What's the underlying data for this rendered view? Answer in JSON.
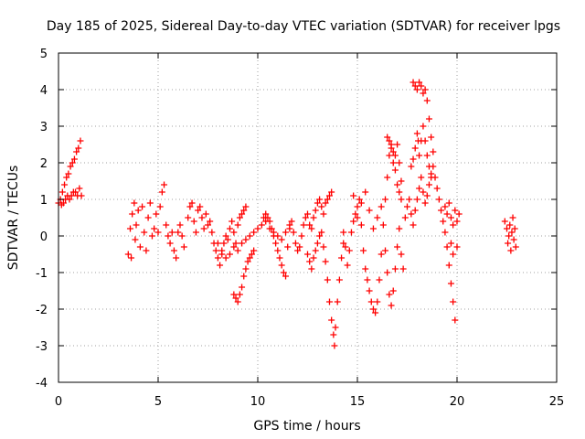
{
  "chart_data": {
    "type": "scatter",
    "title": "Day 185 of 2025, Sidereal Day-to-day VTEC variation (SDTVAR) for receiver lpgs",
    "xlabel": "GPS time / hours",
    "ylabel": "SDTVAR / TECUs",
    "xlim": [
      0,
      25
    ],
    "ylim": [
      -4,
      5
    ],
    "xticks": [
      "0",
      "5",
      "10",
      "15",
      "20",
      "25"
    ],
    "yticks": [
      "-4",
      "-3",
      "-2",
      "-1",
      "0",
      "1",
      "2",
      "3",
      "4",
      "5"
    ],
    "grid": true,
    "marker": "plus",
    "color": "#ff0000",
    "series": [
      {
        "name": "SDTVAR",
        "points": [
          [
            0.0,
            0.9
          ],
          [
            0.1,
            1.0
          ],
          [
            0.15,
            0.85
          ],
          [
            0.2,
            1.2
          ],
          [
            0.25,
            0.9
          ],
          [
            0.3,
            1.4
          ],
          [
            0.35,
            1.0
          ],
          [
            0.4,
            1.6
          ],
          [
            0.45,
            1.1
          ],
          [
            0.5,
            1.7
          ],
          [
            0.55,
            1.0
          ],
          [
            0.6,
            1.9
          ],
          [
            0.65,
            1.1
          ],
          [
            0.7,
            2.0
          ],
          [
            0.75,
            1.2
          ],
          [
            0.8,
            2.1
          ],
          [
            0.85,
            1.2
          ],
          [
            0.9,
            2.3
          ],
          [
            0.95,
            1.1
          ],
          [
            1.0,
            2.4
          ],
          [
            1.05,
            1.3
          ],
          [
            1.1,
            2.6
          ],
          [
            1.15,
            1.1
          ],
          [
            3.5,
            -0.5
          ],
          [
            3.6,
            0.2
          ],
          [
            3.65,
            -0.6
          ],
          [
            3.7,
            0.6
          ],
          [
            3.8,
            0.9
          ],
          [
            3.85,
            -0.1
          ],
          [
            3.9,
            0.3
          ],
          [
            4.0,
            0.7
          ],
          [
            4.1,
            -0.3
          ],
          [
            4.2,
            0.8
          ],
          [
            4.3,
            0.1
          ],
          [
            4.4,
            -0.4
          ],
          [
            4.5,
            0.5
          ],
          [
            4.6,
            0.9
          ],
          [
            4.7,
            0.0
          ],
          [
            4.8,
            0.2
          ],
          [
            4.9,
            0.6
          ],
          [
            5.0,
            0.1
          ],
          [
            5.1,
            0.8
          ],
          [
            5.2,
            1.2
          ],
          [
            5.3,
            1.4
          ],
          [
            5.4,
            0.3
          ],
          [
            5.5,
            0.0
          ],
          [
            5.6,
            -0.2
          ],
          [
            5.7,
            0.1
          ],
          [
            5.8,
            -0.4
          ],
          [
            5.9,
            -0.6
          ],
          [
            6.0,
            0.1
          ],
          [
            6.1,
            0.3
          ],
          [
            6.2,
            0.0
          ],
          [
            6.3,
            -0.3
          ],
          [
            6.5,
            0.5
          ],
          [
            6.6,
            0.8
          ],
          [
            6.7,
            0.9
          ],
          [
            6.8,
            0.4
          ],
          [
            6.9,
            0.1
          ],
          [
            7.0,
            0.7
          ],
          [
            7.1,
            0.8
          ],
          [
            7.2,
            0.5
          ],
          [
            7.3,
            0.2
          ],
          [
            7.4,
            0.6
          ],
          [
            7.5,
            0.3
          ],
          [
            7.6,
            0.4
          ],
          [
            7.7,
            0.1
          ],
          [
            7.8,
            -0.2
          ],
          [
            7.9,
            -0.4
          ],
          [
            8.0,
            -0.6
          ],
          [
            8.1,
            -0.8
          ],
          [
            8.2,
            -0.5
          ],
          [
            8.3,
            -0.2
          ],
          [
            8.4,
            0.0
          ],
          [
            8.5,
            -0.1
          ],
          [
            8.6,
            0.2
          ],
          [
            8.7,
            0.4
          ],
          [
            8.8,
            0.1
          ],
          [
            8.9,
            -0.2
          ],
          [
            9.0,
            0.3
          ],
          [
            9.1,
            0.5
          ],
          [
            9.2,
            0.6
          ],
          [
            9.3,
            0.7
          ],
          [
            9.4,
            0.8
          ],
          [
            8.8,
            -1.6
          ],
          [
            8.9,
            -1.7
          ],
          [
            9.0,
            -1.8
          ],
          [
            9.1,
            -1.6
          ],
          [
            9.2,
            -1.4
          ],
          [
            9.3,
            -1.1
          ],
          [
            9.4,
            -0.9
          ],
          [
            9.5,
            -0.7
          ],
          [
            9.6,
            -0.6
          ],
          [
            9.7,
            -0.5
          ],
          [
            9.8,
            -0.4
          ],
          [
            8.0,
            -0.2
          ],
          [
            8.2,
            -0.4
          ],
          [
            8.4,
            -0.6
          ],
          [
            8.6,
            -0.5
          ],
          [
            8.8,
            -0.3
          ],
          [
            9.0,
            -0.4
          ],
          [
            9.2,
            -0.2
          ],
          [
            9.4,
            -0.1
          ],
          [
            9.6,
            0.0
          ],
          [
            9.8,
            0.1
          ],
          [
            10.0,
            0.2
          ],
          [
            10.2,
            0.3
          ],
          [
            10.4,
            0.4
          ],
          [
            10.6,
            0.2
          ],
          [
            10.8,
            0.1
          ],
          [
            11.0,
            0.0
          ],
          [
            11.2,
            -0.1
          ],
          [
            11.4,
            0.1
          ],
          [
            11.6,
            0.3
          ],
          [
            10.3,
            0.5
          ],
          [
            10.4,
            0.6
          ],
          [
            10.5,
            0.5
          ],
          [
            10.6,
            0.4
          ],
          [
            10.7,
            0.2
          ],
          [
            10.8,
            0.0
          ],
          [
            10.9,
            -0.2
          ],
          [
            11.0,
            -0.4
          ],
          [
            11.1,
            -0.6
          ],
          [
            11.2,
            -0.8
          ],
          [
            11.3,
            -1.0
          ],
          [
            11.4,
            -1.1
          ],
          [
            11.5,
            -0.3
          ],
          [
            11.6,
            0.2
          ],
          [
            11.7,
            0.4
          ],
          [
            11.8,
            0.1
          ],
          [
            11.9,
            -0.2
          ],
          [
            12.0,
            -0.4
          ],
          [
            12.1,
            -0.3
          ],
          [
            12.2,
            0.0
          ],
          [
            12.3,
            0.3
          ],
          [
            12.4,
            0.5
          ],
          [
            12.5,
            0.6
          ],
          [
            12.6,
            0.3
          ],
          [
            12.7,
            0.2
          ],
          [
            12.8,
            0.5
          ],
          [
            12.9,
            0.7
          ],
          [
            13.0,
            0.9
          ],
          [
            13.1,
            1.0
          ],
          [
            13.2,
            0.8
          ],
          [
            13.3,
            0.6
          ],
          [
            13.4,
            0.9
          ],
          [
            13.5,
            1.0
          ],
          [
            13.6,
            1.1
          ],
          [
            13.7,
            1.2
          ],
          [
            12.5,
            -0.5
          ],
          [
            12.6,
            -0.7
          ],
          [
            12.7,
            -0.9
          ],
          [
            12.8,
            -0.6
          ],
          [
            12.9,
            -0.4
          ],
          [
            13.0,
            -0.2
          ],
          [
            13.1,
            0.0
          ],
          [
            13.2,
            0.1
          ],
          [
            13.3,
            -0.3
          ],
          [
            13.4,
            -0.7
          ],
          [
            13.5,
            -1.2
          ],
          [
            13.6,
            -1.8
          ],
          [
            13.7,
            -2.3
          ],
          [
            13.8,
            -2.7
          ],
          [
            13.85,
            -3.0
          ],
          [
            13.9,
            -2.5
          ],
          [
            14.0,
            -1.8
          ],
          [
            14.1,
            -1.2
          ],
          [
            14.2,
            -0.6
          ],
          [
            14.3,
            -0.2
          ],
          [
            14.3,
            0.1
          ],
          [
            14.4,
            -0.3
          ],
          [
            14.5,
            -0.8
          ],
          [
            14.6,
            -0.4
          ],
          [
            14.7,
            0.1
          ],
          [
            14.8,
            0.4
          ],
          [
            14.9,
            0.6
          ],
          [
            15.0,
            0.8
          ],
          [
            15.1,
            1.0
          ],
          [
            15.2,
            0.3
          ],
          [
            15.3,
            -0.4
          ],
          [
            15.4,
            -0.9
          ],
          [
            15.5,
            -1.2
          ],
          [
            15.6,
            -1.5
          ],
          [
            15.7,
            -1.8
          ],
          [
            15.8,
            -2.0
          ],
          [
            15.9,
            -2.1
          ],
          [
            16.0,
            -1.8
          ],
          [
            16.1,
            -1.2
          ],
          [
            16.2,
            -0.5
          ],
          [
            16.3,
            0.3
          ],
          [
            16.4,
            1.0
          ],
          [
            16.5,
            1.6
          ],
          [
            16.6,
            2.2
          ],
          [
            16.7,
            2.5
          ],
          [
            16.8,
            2.3
          ],
          [
            16.9,
            1.8
          ],
          [
            17.0,
            1.4
          ],
          [
            17.1,
            1.2
          ],
          [
            17.2,
            1.0
          ],
          [
            14.8,
            1.1
          ],
          [
            15.0,
            0.5
          ],
          [
            15.2,
            0.9
          ],
          [
            15.4,
            1.2
          ],
          [
            15.6,
            0.7
          ],
          [
            15.8,
            0.2
          ],
          [
            16.0,
            0.5
          ],
          [
            16.2,
            0.8
          ],
          [
            16.4,
            -0.4
          ],
          [
            16.5,
            -1.0
          ],
          [
            16.6,
            -1.6
          ],
          [
            16.7,
            -1.9
          ],
          [
            16.8,
            -1.5
          ],
          [
            16.9,
            -0.9
          ],
          [
            17.0,
            -0.3
          ],
          [
            17.1,
            0.2
          ],
          [
            17.2,
            -0.5
          ],
          [
            17.3,
            -0.9
          ],
          [
            16.5,
            2.7
          ],
          [
            16.6,
            2.6
          ],
          [
            16.7,
            2.4
          ],
          [
            16.8,
            2.0
          ],
          [
            16.9,
            2.2
          ],
          [
            17.0,
            2.5
          ],
          [
            17.1,
            2.0
          ],
          [
            17.2,
            1.5
          ],
          [
            17.4,
            0.5
          ],
          [
            17.5,
            0.8
          ],
          [
            17.6,
            1.0
          ],
          [
            17.7,
            0.6
          ],
          [
            17.8,
            0.3
          ],
          [
            17.9,
            0.7
          ],
          [
            18.0,
            1.0
          ],
          [
            18.1,
            1.3
          ],
          [
            18.2,
            1.6
          ],
          [
            18.3,
            1.2
          ],
          [
            18.4,
            0.9
          ],
          [
            18.5,
            1.1
          ],
          [
            18.6,
            1.4
          ],
          [
            18.7,
            1.7
          ],
          [
            18.8,
            1.9
          ],
          [
            18.9,
            1.6
          ],
          [
            19.0,
            1.3
          ],
          [
            19.1,
            1.0
          ],
          [
            19.2,
            0.7
          ],
          [
            19.3,
            0.4
          ],
          [
            19.4,
            0.1
          ],
          [
            19.5,
            -0.3
          ],
          [
            17.7,
            1.9
          ],
          [
            17.8,
            2.1
          ],
          [
            17.9,
            2.4
          ],
          [
            18.0,
            2.8
          ],
          [
            18.05,
            2.6
          ],
          [
            18.1,
            2.2
          ],
          [
            18.2,
            2.6
          ],
          [
            18.3,
            3.0
          ],
          [
            18.4,
            2.6
          ],
          [
            18.5,
            2.2
          ],
          [
            18.6,
            1.9
          ],
          [
            18.7,
            1.6
          ],
          [
            17.8,
            4.2
          ],
          [
            17.9,
            4.1
          ],
          [
            18.0,
            4.0
          ],
          [
            18.1,
            4.2
          ],
          [
            18.2,
            4.1
          ],
          [
            18.3,
            3.9
          ],
          [
            18.4,
            4.0
          ],
          [
            18.5,
            3.7
          ],
          [
            18.6,
            3.2
          ],
          [
            18.7,
            2.7
          ],
          [
            18.8,
            2.3
          ],
          [
            19.4,
            0.8
          ],
          [
            19.5,
            0.6
          ],
          [
            19.6,
            0.9
          ],
          [
            19.7,
            0.5
          ],
          [
            19.8,
            0.3
          ],
          [
            19.9,
            0.7
          ],
          [
            20.0,
            0.4
          ],
          [
            20.1,
            0.6
          ],
          [
            19.6,
            -0.8
          ],
          [
            19.7,
            -1.3
          ],
          [
            19.8,
            -1.8
          ],
          [
            19.9,
            -2.3
          ],
          [
            19.7,
            -0.2
          ],
          [
            19.8,
            -0.5
          ],
          [
            20.0,
            -0.3
          ],
          [
            22.4,
            0.4
          ],
          [
            22.5,
            0.2
          ],
          [
            22.55,
            -0.2
          ],
          [
            22.6,
            0.0
          ],
          [
            22.65,
            0.3
          ],
          [
            22.7,
            -0.4
          ],
          [
            22.75,
            0.1
          ],
          [
            22.8,
            0.5
          ],
          [
            22.85,
            -0.1
          ],
          [
            22.9,
            0.2
          ],
          [
            22.95,
            -0.3
          ]
        ]
      }
    ]
  }
}
